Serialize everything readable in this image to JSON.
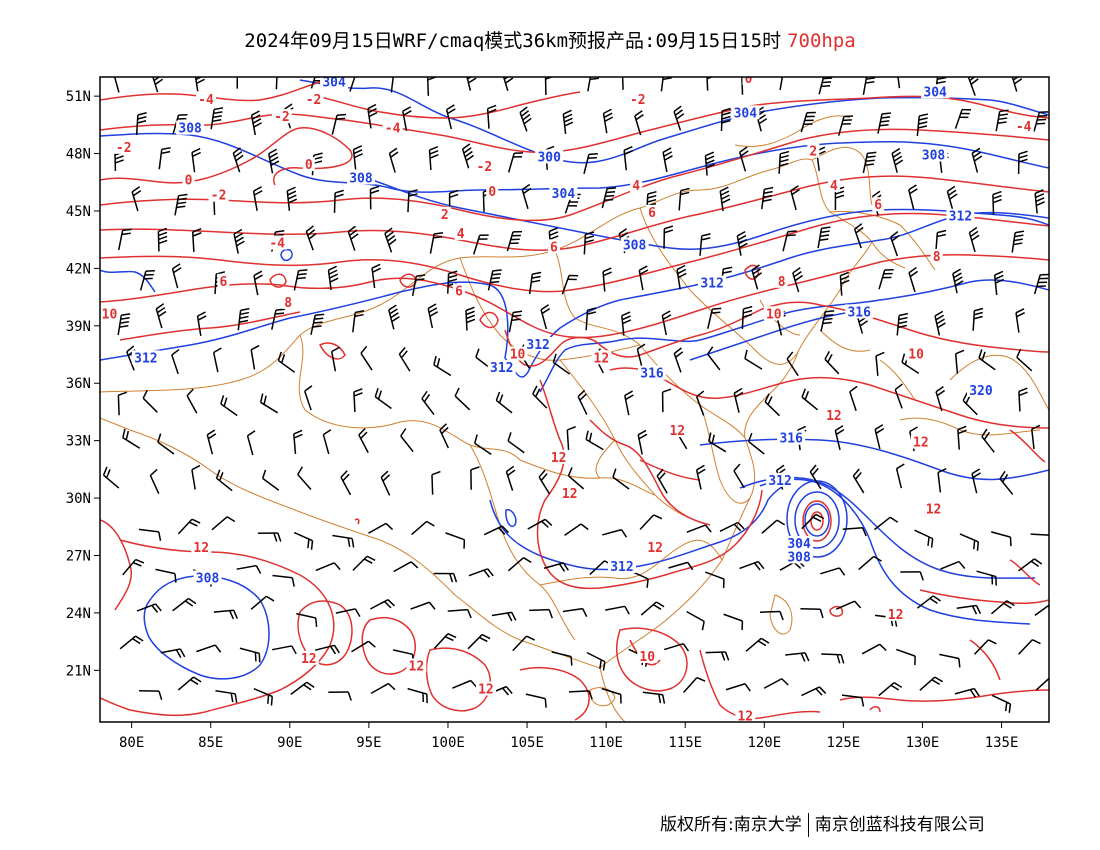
{
  "title": {
    "main": "2024年09月15日WRF/cmaq模式36km预报产品:09月15日15时",
    "level": "700hpa"
  },
  "footer": {
    "left": "版权所有:南京大学",
    "right": "南京创蓝科技有限公司"
  },
  "colors": {
    "temperature_isotherm": "#e03030",
    "geopotential_height": "#2040e0",
    "boundary": "#d08030",
    "wind_barb": "#000000"
  },
  "map": {
    "lat_labels": [
      "51N",
      "48N",
      "45N",
      "42N",
      "39N",
      "36N",
      "33N",
      "30N",
      "27N",
      "24N",
      "21N"
    ],
    "lat_values": [
      51,
      48,
      45,
      42,
      39,
      36,
      33,
      30,
      27,
      24,
      21
    ],
    "lon_labels": [
      "80E",
      "85E",
      "90E",
      "95E",
      "100E",
      "105E",
      "110E",
      "115E",
      "120E",
      "125E",
      "130E",
      "135E"
    ],
    "lon_values": [
      80,
      85,
      90,
      95,
      100,
      105,
      110,
      115,
      120,
      125,
      130,
      135
    ],
    "lon_range": [
      78,
      138
    ],
    "lat_range": [
      18.3,
      52
    ]
  },
  "contour_labels": {
    "temperature": [
      {
        "text": "-2",
        "lon": 79.5,
        "lat": 48.3
      },
      {
        "text": "-4",
        "lon": 84.7,
        "lat": 50.8
      },
      {
        "text": "-2",
        "lon": 89.5,
        "lat": 49.9
      },
      {
        "text": "-2",
        "lon": 91.5,
        "lat": 50.8
      },
      {
        "text": "-4",
        "lon": 96.5,
        "lat": 49.3
      },
      {
        "text": "0",
        "lon": 91.2,
        "lat": 47.4
      },
      {
        "text": "0",
        "lon": 83.6,
        "lat": 46.6
      },
      {
        "text": "-2",
        "lon": 85.5,
        "lat": 45.8
      },
      {
        "text": "-2",
        "lon": 102.3,
        "lat": 47.3
      },
      {
        "text": "0",
        "lon": 102.8,
        "lat": 46.0
      },
      {
        "text": "-2",
        "lon": 112.0,
        "lat": 50.8
      },
      {
        "text": "0",
        "lon": 119.0,
        "lat": 51.9
      },
      {
        "text": "4",
        "lon": 111.9,
        "lat": 46.3
      },
      {
        "text": "-4",
        "lon": 136.4,
        "lat": 49.4
      },
      {
        "text": "2",
        "lon": 123.1,
        "lat": 48.1
      },
      {
        "text": "4",
        "lon": 124.4,
        "lat": 46.3
      },
      {
        "text": "2",
        "lon": 99.8,
        "lat": 44.8
      },
      {
        "text": "4",
        "lon": 100.8,
        "lat": 43.8
      },
      {
        "text": "6",
        "lon": 112.9,
        "lat": 44.9
      },
      {
        "text": "6",
        "lon": 127.2,
        "lat": 45.3
      },
      {
        "text": "-4",
        "lon": 89.2,
        "lat": 43.3
      },
      {
        "text": "6",
        "lon": 106.7,
        "lat": 43.1
      },
      {
        "text": "8",
        "lon": 130.9,
        "lat": 42.6
      },
      {
        "text": "6",
        "lon": 85.8,
        "lat": 41.3
      },
      {
        "text": "8",
        "lon": 121.1,
        "lat": 41.3
      },
      {
        "text": "6",
        "lon": 100.7,
        "lat": 40.8
      },
      {
        "text": "8",
        "lon": 89.9,
        "lat": 40.2
      },
      {
        "text": "10",
        "lon": 78.6,
        "lat": 39.6
      },
      {
        "text": "10",
        "lon": 120.6,
        "lat": 39.6
      },
      {
        "text": "10",
        "lon": 104.4,
        "lat": 37.5
      },
      {
        "text": "12",
        "lon": 109.7,
        "lat": 37.3
      },
      {
        "text": "10",
        "lon": 129.6,
        "lat": 37.5
      },
      {
        "text": "12",
        "lon": 124.4,
        "lat": 34.3
      },
      {
        "text": "12",
        "lon": 114.5,
        "lat": 33.5
      },
      {
        "text": "12",
        "lon": 129.9,
        "lat": 32.9
      },
      {
        "text": "12",
        "lon": 107.0,
        "lat": 32.1
      },
      {
        "text": "12",
        "lon": 107.7,
        "lat": 30.2
      },
      {
        "text": "12",
        "lon": 130.7,
        "lat": 29.4
      },
      {
        "text": "12",
        "lon": 84.4,
        "lat": 27.4
      },
      {
        "text": "12",
        "lon": 113.1,
        "lat": 27.4
      },
      {
        "text": "12",
        "lon": 128.3,
        "lat": 23.9
      },
      {
        "text": "12",
        "lon": 91.2,
        "lat": 21.6
      },
      {
        "text": "12",
        "lon": 98.0,
        "lat": 21.2
      },
      {
        "text": "10",
        "lon": 112.6,
        "lat": 21.7
      },
      {
        "text": "12",
        "lon": 102.4,
        "lat": 20.0
      },
      {
        "text": "12",
        "lon": 118.8,
        "lat": 18.6
      }
    ],
    "height": [
      {
        "text": "304",
        "lon": 92.8,
        "lat": 51.7
      },
      {
        "text": "304",
        "lon": 130.8,
        "lat": 51.2
      },
      {
        "text": "304",
        "lon": 118.8,
        "lat": 50.1
      },
      {
        "text": "308",
        "lon": 83.7,
        "lat": 49.3
      },
      {
        "text": "300",
        "lon": 106.4,
        "lat": 47.8
      },
      {
        "text": "308",
        "lon": 130.7,
        "lat": 47.9
      },
      {
        "text": "308",
        "lon": 94.5,
        "lat": 46.7
      },
      {
        "text": "304",
        "lon": 107.3,
        "lat": 45.9
      },
      {
        "text": "312",
        "lon": 132.4,
        "lat": 44.7
      },
      {
        "text": "308",
        "lon": 111.8,
        "lat": 43.2
      },
      {
        "text": "312",
        "lon": 116.7,
        "lat": 41.2
      },
      {
        "text": "316",
        "lon": 126.0,
        "lat": 39.7
      },
      {
        "text": "312",
        "lon": 80.9,
        "lat": 37.3
      },
      {
        "text": "312",
        "lon": 105.7,
        "lat": 38.0
      },
      {
        "text": "312",
        "lon": 103.4,
        "lat": 36.8
      },
      {
        "text": "316",
        "lon": 112.9,
        "lat": 36.5
      },
      {
        "text": "320",
        "lon": 133.7,
        "lat": 35.6
      },
      {
        "text": "316",
        "lon": 121.7,
        "lat": 33.1
      },
      {
        "text": "312",
        "lon": 121.0,
        "lat": 30.9
      },
      {
        "text": "308",
        "lon": 84.8,
        "lat": 25.8
      },
      {
        "text": "304",
        "lon": 122.2,
        "lat": 27.6
      },
      {
        "text": "308",
        "lon": 122.2,
        "lat": 26.9
      },
      {
        "text": "312",
        "lon": 111.0,
        "lat": 26.4
      }
    ]
  }
}
